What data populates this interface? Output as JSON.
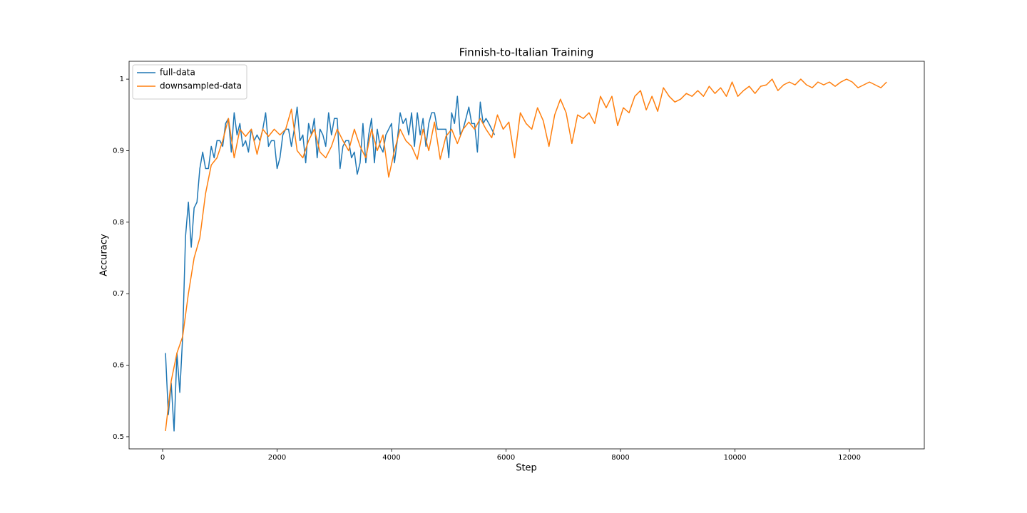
{
  "chart_data": {
    "type": "line",
    "title": "Finnish-to-Italian Training",
    "x_label": "Step",
    "y_label": "Accuracy",
    "xlim": [
      -586,
      13308
    ],
    "ylim": [
      0.483,
      1.025
    ],
    "xticks": [
      0,
      2000,
      4000,
      6000,
      8000,
      10000,
      12000
    ],
    "yticks": [
      0.5,
      0.6,
      0.7,
      0.8,
      0.9,
      1.0
    ],
    "legend": "upper left",
    "grid": false,
    "series": [
      {
        "name": "full-data",
        "color": "#1f77b4",
        "x": [
          50,
          100,
          150,
          200,
          250,
          300,
          350,
          400,
          450,
          500,
          550,
          600,
          650,
          700,
          750,
          800,
          850,
          900,
          950,
          1000,
          1050,
          1100,
          1150,
          1200,
          1250,
          1300,
          1350,
          1400,
          1450,
          1500,
          1550,
          1600,
          1650,
          1700,
          1750,
          1800,
          1850,
          1900,
          1950,
          2000,
          2050,
          2100,
          2150,
          2200,
          2250,
          2300,
          2350,
          2400,
          2450,
          2500,
          2550,
          2600,
          2650,
          2700,
          2750,
          2800,
          2850,
          2900,
          2950,
          3000,
          3050,
          3100,
          3150,
          3200,
          3250,
          3300,
          3350,
          3400,
          3450,
          3500,
          3550,
          3600,
          3650,
          3700,
          3750,
          3800,
          3850,
          3900,
          3950,
          4000,
          4050,
          4100,
          4150,
          4200,
          4250,
          4300,
          4350,
          4400,
          4450,
          4500,
          4550,
          4600,
          4650,
          4700,
          4750,
          4800,
          4850,
          4900,
          4950,
          5000,
          5050,
          5100,
          5150,
          5200,
          5250,
          5300,
          5350,
          5400,
          5450,
          5500,
          5550,
          5600,
          5650,
          5700,
          5750,
          5800
        ],
        "values": [
          0.617,
          0.531,
          0.575,
          0.508,
          0.617,
          0.562,
          0.64,
          0.78,
          0.828,
          0.765,
          0.82,
          0.828,
          0.875,
          0.898,
          0.875,
          0.875,
          0.906,
          0.89,
          0.914,
          0.914,
          0.906,
          0.938,
          0.945,
          0.898,
          0.953,
          0.922,
          0.938,
          0.906,
          0.914,
          0.898,
          0.93,
          0.914,
          0.922,
          0.914,
          0.93,
          0.953,
          0.906,
          0.914,
          0.914,
          0.875,
          0.89,
          0.922,
          0.93,
          0.93,
          0.906,
          0.93,
          0.961,
          0.914,
          0.922,
          0.883,
          0.938,
          0.922,
          0.945,
          0.89,
          0.93,
          0.922,
          0.906,
          0.953,
          0.922,
          0.945,
          0.945,
          0.875,
          0.906,
          0.914,
          0.914,
          0.89,
          0.898,
          0.867,
          0.883,
          0.938,
          0.883,
          0.922,
          0.945,
          0.883,
          0.93,
          0.906,
          0.898,
          0.922,
          0.93,
          0.938,
          0.883,
          0.914,
          0.953,
          0.938,
          0.945,
          0.922,
          0.953,
          0.906,
          0.953,
          0.922,
          0.945,
          0.906,
          0.938,
          0.953,
          0.953,
          0.93,
          0.93,
          0.93,
          0.93,
          0.89,
          0.953,
          0.938,
          0.976,
          0.922,
          0.93,
          0.945,
          0.961,
          0.938,
          0.938,
          0.898,
          0.968,
          0.938,
          0.945,
          0.938,
          0.93,
          0.922
        ]
      },
      {
        "name": "downsampled-data",
        "color": "#ff7f0e",
        "x": [
          50,
          150,
          250,
          350,
          450,
          550,
          650,
          750,
          850,
          950,
          1050,
          1150,
          1250,
          1350,
          1450,
          1550,
          1650,
          1750,
          1850,
          1950,
          2050,
          2150,
          2250,
          2350,
          2450,
          2550,
          2650,
          2750,
          2850,
          2950,
          3050,
          3150,
          3250,
          3350,
          3450,
          3550,
          3650,
          3750,
          3850,
          3950,
          4050,
          4150,
          4250,
          4350,
          4450,
          4550,
          4650,
          4750,
          4850,
          4950,
          5050,
          5150,
          5250,
          5350,
          5450,
          5550,
          5650,
          5750,
          5850,
          5950,
          6050,
          6150,
          6250,
          6350,
          6450,
          6550,
          6650,
          6750,
          6850,
          6950,
          7050,
          7150,
          7250,
          7350,
          7450,
          7550,
          7650,
          7750,
          7850,
          7950,
          8050,
          8150,
          8250,
          8350,
          8450,
          8550,
          8650,
          8750,
          8850,
          8950,
          9050,
          9150,
          9250,
          9350,
          9450,
          9550,
          9650,
          9750,
          9850,
          9950,
          10050,
          10150,
          10250,
          10350,
          10450,
          10550,
          10650,
          10750,
          10850,
          10950,
          11050,
          11150,
          11250,
          11350,
          11450,
          11550,
          11650,
          11750,
          11850,
          11950,
          12050,
          12150,
          12250,
          12350,
          12450,
          12550,
          12650
        ],
        "values": [
          0.508,
          0.578,
          0.617,
          0.64,
          0.7,
          0.75,
          0.778,
          0.84,
          0.88,
          0.89,
          0.914,
          0.945,
          0.89,
          0.93,
          0.92,
          0.93,
          0.895,
          0.93,
          0.92,
          0.93,
          0.922,
          0.93,
          0.958,
          0.9,
          0.89,
          0.914,
          0.93,
          0.898,
          0.89,
          0.906,
          0.93,
          0.914,
          0.9,
          0.93,
          0.906,
          0.89,
          0.93,
          0.9,
          0.922,
          0.863,
          0.9,
          0.93,
          0.914,
          0.906,
          0.888,
          0.93,
          0.9,
          0.94,
          0.888,
          0.92,
          0.93,
          0.91,
          0.93,
          0.94,
          0.93,
          0.945,
          0.93,
          0.918,
          0.95,
          0.93,
          0.94,
          0.89,
          0.953,
          0.938,
          0.93,
          0.96,
          0.942,
          0.906,
          0.95,
          0.972,
          0.953,
          0.91,
          0.95,
          0.945,
          0.953,
          0.938,
          0.976,
          0.96,
          0.976,
          0.935,
          0.96,
          0.953,
          0.976,
          0.984,
          0.957,
          0.976,
          0.955,
          0.988,
          0.976,
          0.968,
          0.972,
          0.98,
          0.976,
          0.984,
          0.976,
          0.99,
          0.98,
          0.988,
          0.976,
          0.996,
          0.976,
          0.984,
          0.99,
          0.98,
          0.99,
          0.992,
          1.0,
          0.984,
          0.992,
          0.996,
          0.992,
          1.0,
          0.992,
          0.988,
          0.996,
          0.992,
          0.996,
          0.99,
          0.996,
          1.0,
          0.996,
          0.988,
          0.992,
          0.996,
          0.992,
          0.988,
          0.996
        ]
      }
    ]
  }
}
